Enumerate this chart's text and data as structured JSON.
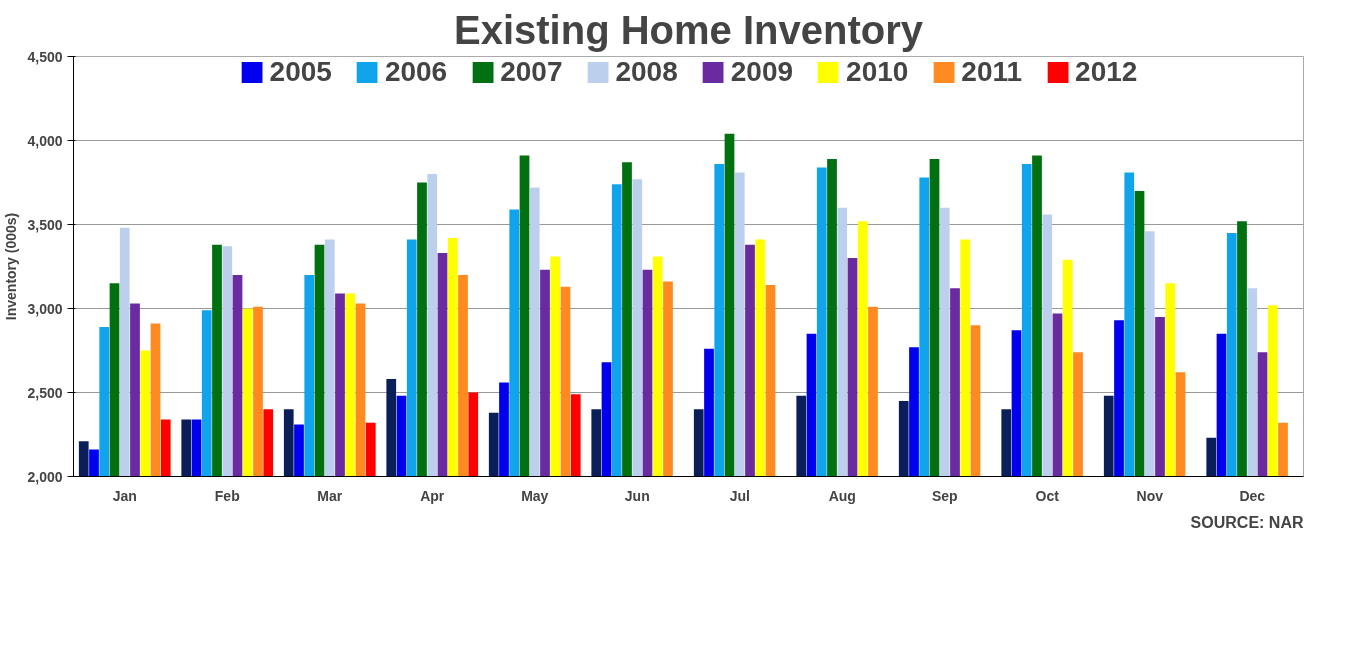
{
  "chart_data": {
    "type": "bar",
    "title": "Existing Home Inventory",
    "ylabel": "Inventory (000s)",
    "categories": [
      "Jan",
      "Feb",
      "Mar",
      "Apr",
      "May",
      "Jun",
      "Jul",
      "Aug",
      "Sep",
      "Oct",
      "Nov",
      "Dec"
    ],
    "series": [
      {
        "color": "#0a1e5a",
        "values": [
          2210,
          2340,
          2400,
          2580,
          2380,
          2400,
          2400,
          2480,
          2450,
          2400,
          2480,
          2230
        ]
      },
      {
        "name": "2005",
        "color": "#0000ee",
        "values": [
          2160,
          2340,
          2310,
          2480,
          2560,
          2680,
          2760,
          2850,
          2770,
          2870,
          2930,
          2850
        ]
      },
      {
        "name": "2006",
        "color": "#10a4ec",
        "values": [
          2890,
          2990,
          3200,
          3410,
          3590,
          3740,
          3860,
          3840,
          3780,
          3860,
          3810,
          3450
        ]
      },
      {
        "name": "2007",
        "color": "#007010",
        "values": [
          3150,
          3380,
          3380,
          3750,
          3910,
          3870,
          4040,
          3890,
          3890,
          3910,
          3700,
          3520
        ]
      },
      {
        "name": "2008",
        "color": "#bcd0ee",
        "values": [
          3480,
          3370,
          3410,
          3800,
          3720,
          3770,
          3810,
          3600,
          3600,
          3560,
          3460,
          3120
        ]
      },
      {
        "name": "2009",
        "color": "#6a2aa0",
        "values": [
          3030,
          3200,
          3090,
          3330,
          3230,
          3230,
          3380,
          3300,
          3120,
          2970,
          2950,
          2740
        ]
      },
      {
        "name": "2010",
        "color": "#ffff00",
        "values": [
          2750,
          3000,
          3090,
          3420,
          3310,
          3310,
          3410,
          3520,
          3410,
          3290,
          3150,
          3020
        ]
      },
      {
        "name": "2011",
        "color": "#ff8a22",
        "values": [
          2910,
          3010,
          3030,
          3200,
          3130,
          3160,
          3140,
          3010,
          2900,
          2740,
          2620,
          2320
        ]
      },
      {
        "name": "2012",
        "color": "#ff0000",
        "values": [
          2340,
          2400,
          2320,
          2500,
          2490,
          null,
          null,
          null,
          null,
          null,
          null,
          null
        ]
      }
    ],
    "ylim": [
      2000,
      4500
    ],
    "yticks": [
      {
        "value": 2000,
        "label": "2,000"
      },
      {
        "value": 2500,
        "label": "2,500"
      },
      {
        "value": 3000,
        "label": "3,000"
      },
      {
        "value": 3500,
        "label": "3,500"
      },
      {
        "value": 4000,
        "label": "4,000"
      },
      {
        "value": 4500,
        "label": "4,500"
      }
    ],
    "grid": "y",
    "legend": "top",
    "annotations": [
      "SOURCE: NAR"
    ]
  }
}
